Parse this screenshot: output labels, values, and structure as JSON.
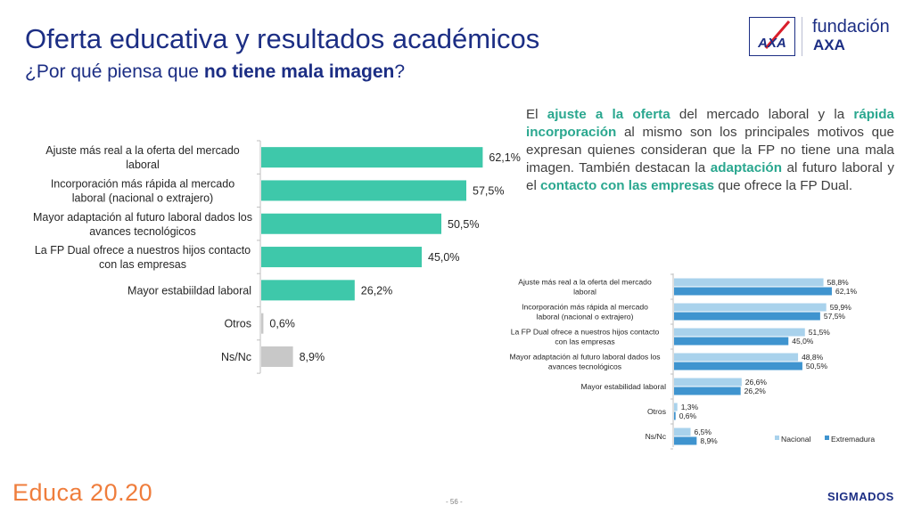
{
  "header": {
    "title": "Oferta educativa y resultados académicos",
    "subtitle_pre": "¿Por qué piensa que ",
    "subtitle_bold": "no tiene mala imagen",
    "subtitle_post": "?"
  },
  "logo": {
    "brand_mark": "AXA",
    "fundacion": "fundación",
    "axa": "AXA"
  },
  "paragraph": {
    "p1": "El ",
    "h1": "ajuste a la oferta",
    "p2": " del mercado laboral y la ",
    "h2": "rápida incorporación",
    "p3": " al mismo son los principales motivos que expresan quienes consideran que la FP no tiene una mala imagen. También destacan la ",
    "h3": "adaptación",
    "p4": " al futuro laboral y el ",
    "h4": "contacto con las empresas",
    "p5": " que ofrece la FP Dual."
  },
  "colors": {
    "main_bar": "#3ec8aa",
    "other_bar": "#c8c8c8",
    "nacional": "#a9d2ec",
    "extremadura": "#3f94cf",
    "title": "#1c2e84",
    "highlight": "#2aa78f"
  },
  "chart_data": [
    {
      "type": "bar",
      "orientation": "horizontal",
      "categories": [
        [
          "Ajuste más real a la oferta del mercado",
          "laboral"
        ],
        [
          "Incorporación más rápida al mercado",
          "laboral (nacional o extrajero)"
        ],
        [
          "Mayor adaptación al futuro laboral dados los",
          "avances tecnológicos"
        ],
        [
          "La FP Dual ofrece a nuestros hijos contacto",
          "con las empresas"
        ],
        [
          "Mayor estabiildad laboral"
        ],
        [
          "Otros"
        ],
        [
          "Ns/Nc"
        ]
      ],
      "values": [
        62.1,
        57.5,
        50.5,
        45.0,
        26.2,
        0.6,
        8.9
      ],
      "value_labels": [
        "62,1%",
        "57,5%",
        "50,5%",
        "45,0%",
        "26,2%",
        "0,6%",
        "8,9%"
      ],
      "gray_from_index": 5,
      "xlim": [
        0,
        100
      ]
    },
    {
      "type": "bar",
      "orientation": "horizontal",
      "categories": [
        [
          "Ajuste más real a la oferta del mercado",
          "laboral"
        ],
        [
          "Incorporación más rápida al mercado",
          "laboral (nacional o extrajero)"
        ],
        [
          "La FP Dual ofrece a nuestros hijos contacto",
          "con las empresas"
        ],
        [
          "Mayor adaptación al futuro laboral dados los",
          "avances tecnológicos"
        ],
        [
          "Mayor estabilidad laboral"
        ],
        [
          "Otros"
        ],
        [
          "Ns/Nc"
        ]
      ],
      "series": [
        {
          "name": "Nacional",
          "values": [
            58.8,
            59.9,
            51.5,
            48.8,
            26.6,
            1.3,
            6.5
          ],
          "value_labels": [
            "58,8%",
            "59,9%",
            "51,5%",
            "48,8%",
            "26,6%",
            "1,3%",
            "6,5%"
          ]
        },
        {
          "name": "Extremadura",
          "values": [
            62.1,
            57.5,
            45.0,
            50.5,
            26.2,
            0.6,
            8.9
          ],
          "value_labels": [
            "62,1%",
            "57,5%",
            "45,0%",
            "50,5%",
            "26,2%",
            "0,6%",
            "8,9%"
          ]
        }
      ],
      "legend": "bottom-right",
      "xlim": [
        0,
        100
      ]
    }
  ],
  "footer": {
    "logo": "Educa 20.20",
    "page": "- 56 -",
    "brand": "SIGMADOS"
  }
}
